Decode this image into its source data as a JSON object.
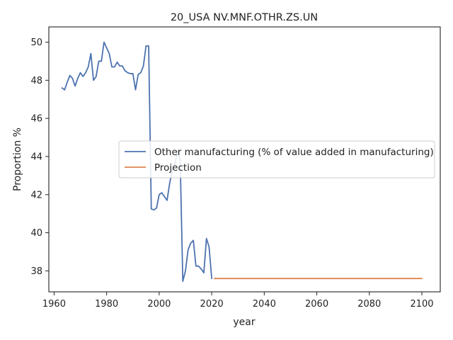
{
  "chart_data": {
    "type": "line",
    "title": "20_USA NV.MNF.OTHR.ZS.UN",
    "xlabel": "year",
    "ylabel": "Proportion %",
    "xlim": [
      1958,
      2107
    ],
    "ylim": [
      36.9,
      50.8
    ],
    "x_ticks": [
      1960,
      1980,
      2000,
      2020,
      2040,
      2060,
      2080,
      2100
    ],
    "y_ticks": [
      38,
      40,
      42,
      44,
      46,
      48,
      50
    ],
    "grid": false,
    "legend_position": "center-right",
    "series": [
      {
        "name": "Other manufacturing (% of value added in manufacturing)",
        "color": "#4c72b0",
        "x": [
          1963,
          1964,
          1965,
          1966,
          1967,
          1968,
          1969,
          1970,
          1971,
          1972,
          1973,
          1974,
          1975,
          1976,
          1977,
          1978,
          1979,
          1980,
          1981,
          1982,
          1983,
          1984,
          1985,
          1986,
          1987,
          1988,
          1989,
          1990,
          1991,
          1992,
          1993,
          1994,
          1995,
          1996,
          1997,
          1998,
          1999,
          2000,
          2001,
          2002,
          2003,
          2004,
          2005,
          2006,
          2007,
          2008,
          2009,
          2010,
          2011,
          2012,
          2013,
          2014,
          2015,
          2016,
          2017,
          2018,
          2019,
          2020
        ],
        "y": [
          47.6,
          47.5,
          47.9,
          48.25,
          48.1,
          47.7,
          48.1,
          48.4,
          48.2,
          48.4,
          48.7,
          49.4,
          48.0,
          48.2,
          49.0,
          49.0,
          50.0,
          49.7,
          49.4,
          48.7,
          48.7,
          48.95,
          48.75,
          48.75,
          48.5,
          48.4,
          48.35,
          48.35,
          47.5,
          48.3,
          48.4,
          48.75,
          49.8,
          49.8,
          41.25,
          41.2,
          41.3,
          42.0,
          42.1,
          41.9,
          41.7,
          42.6,
          43.3,
          43.6,
          44.3,
          43.8,
          37.45,
          38.0,
          39.1,
          39.45,
          39.6,
          38.25,
          38.25,
          38.1,
          37.9,
          39.7,
          39.25,
          37.6
        ]
      },
      {
        "name": "Projection",
        "color": "#dd8452",
        "x": [
          2021,
          2100
        ],
        "y": [
          37.6,
          37.6
        ]
      }
    ]
  }
}
